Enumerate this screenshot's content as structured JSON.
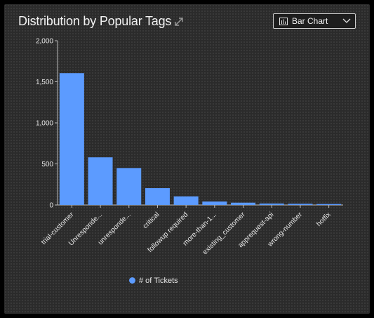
{
  "header": {
    "title": "Distribution by Popular Tags",
    "expand_icon": "expand-icon"
  },
  "chart_selector": {
    "icon": "bar-chart-icon",
    "label": "Bar Chart",
    "chevron_icon": "chevron-down-icon"
  },
  "colors": {
    "bar": "#5c9bff",
    "background": "#2b2b2b",
    "axis": "#bdbdbd"
  },
  "chart_data": {
    "type": "bar",
    "categories": [
      "trial-customer",
      "Unresponde...",
      "unresponde...",
      "critical",
      "followup required",
      "more-than-1...",
      "existing_customer",
      "apprequest-api",
      "wrong-number",
      "hotfix"
    ],
    "series": [
      {
        "name": "# of Tickets",
        "values": [
          1605,
          580,
          450,
          205,
          105,
          42,
          28,
          18,
          15,
          12
        ]
      }
    ],
    "y_ticks": [
      "0",
      "500",
      "1,000",
      "1,500",
      "2,000"
    ],
    "ylim": [
      0,
      2000
    ],
    "grid": false,
    "legend_position": "bottom-left"
  }
}
